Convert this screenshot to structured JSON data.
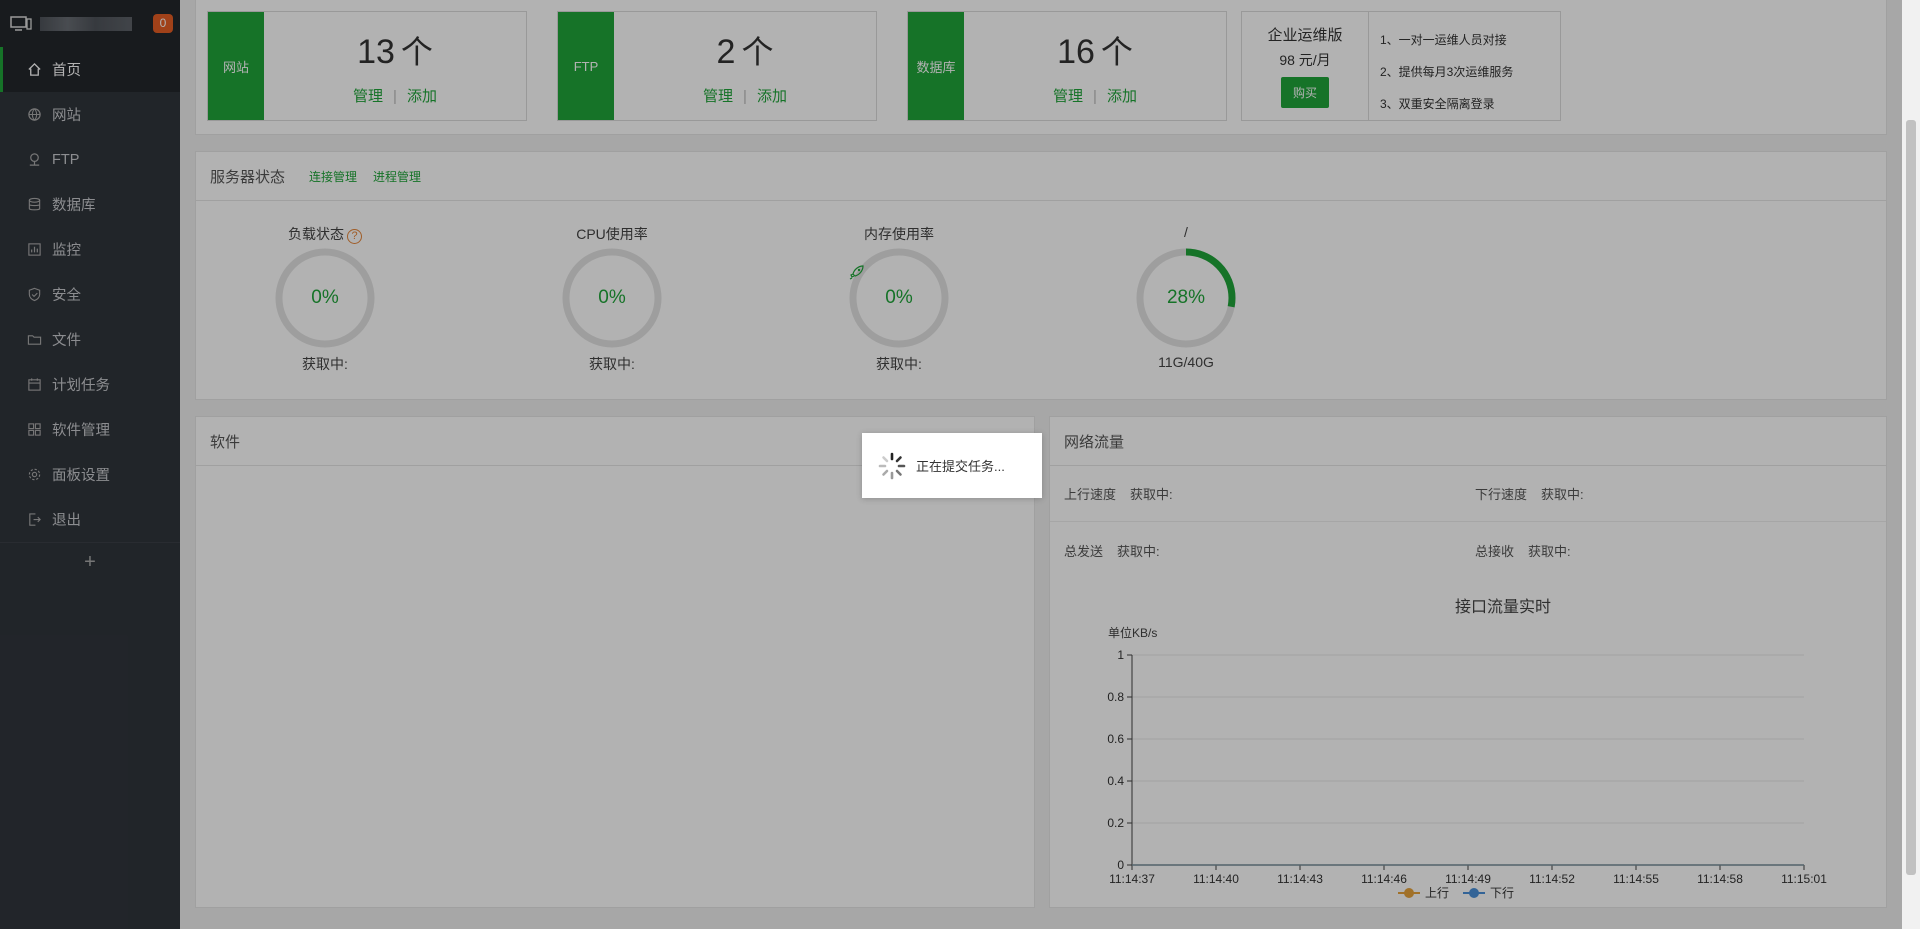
{
  "sidebar": {
    "badge": "0",
    "items": [
      {
        "label": "首页",
        "icon": "home-icon"
      },
      {
        "label": "网站",
        "icon": "globe-icon"
      },
      {
        "label": "FTP",
        "icon": "ftp-icon"
      },
      {
        "label": "数据库",
        "icon": "database-icon"
      },
      {
        "label": "监控",
        "icon": "monitor-icon"
      },
      {
        "label": "安全",
        "icon": "shield-icon"
      },
      {
        "label": "文件",
        "icon": "folder-icon"
      },
      {
        "label": "计划任务",
        "icon": "calendar-icon"
      },
      {
        "label": "软件管理",
        "icon": "grid-icon"
      },
      {
        "label": "面板设置",
        "icon": "gear-icon"
      },
      {
        "label": "退出",
        "icon": "logout-icon"
      }
    ],
    "add": "+"
  },
  "stats": [
    {
      "tag": "网站",
      "count": "13",
      "unit": "个",
      "manage": "管理",
      "add": "添加"
    },
    {
      "tag": "FTP",
      "count": "2",
      "unit": "个",
      "manage": "管理",
      "add": "添加"
    },
    {
      "tag": "数据库",
      "count": "16",
      "unit": "个",
      "manage": "管理",
      "add": "添加"
    }
  ],
  "promo": {
    "title": "企业运维版",
    "price": "98 元/月",
    "buy": "购买",
    "features": [
      "1、一对一运维人员对接",
      "2、提供每月3次运维服务",
      "3、双重安全隔离登录"
    ]
  },
  "server_status": {
    "title": "服务器状态",
    "link1": "连接管理",
    "link2": "进程管理",
    "gauges": [
      {
        "label": "负载状态",
        "help": "?",
        "value": "0%",
        "caption": "获取中:",
        "fraction": 0
      },
      {
        "label": "CPU使用率",
        "value": "0%",
        "caption": "获取中:",
        "fraction": 0
      },
      {
        "label": "内存使用率",
        "value": "0%",
        "caption": "获取中:",
        "fraction": 0
      },
      {
        "label": "/",
        "value": "28%",
        "caption": "11G/40G",
        "fraction": 0.28
      }
    ]
  },
  "software": {
    "title": "软件"
  },
  "network": {
    "title": "网络流量",
    "up_label": "上行速度",
    "up_value": "获取中:",
    "down_label": "下行速度",
    "down_value": "获取中:",
    "sent_label": "总发送",
    "sent_value": "获取中:",
    "recv_label": "总接收",
    "recv_value": "获取中:"
  },
  "loading": {
    "text": "正在提交任务..."
  },
  "colors": {
    "accent": "#20a53a",
    "up": "#e7a33c",
    "down": "#4a90d9"
  },
  "chart_data": {
    "type": "line",
    "title": "接口流量实时",
    "ylabel": "单位KB/s",
    "ylim": [
      0,
      1
    ],
    "yticks": [
      "0",
      "0.2",
      "0.4",
      "0.6",
      "0.8",
      "1"
    ],
    "x": [
      "11:14:37",
      "11:14:40",
      "11:14:43",
      "11:14:46",
      "11:14:49",
      "11:14:52",
      "11:14:55",
      "11:14:58",
      "11:15:01"
    ],
    "series": [
      {
        "name": "上行",
        "values": [
          0,
          0,
          0,
          0,
          0,
          0,
          0,
          0,
          0
        ]
      },
      {
        "name": "下行",
        "values": [
          0,
          0,
          0,
          0,
          0,
          0,
          0,
          0,
          0
        ]
      }
    ],
    "grid": true,
    "legend": "bottom"
  }
}
